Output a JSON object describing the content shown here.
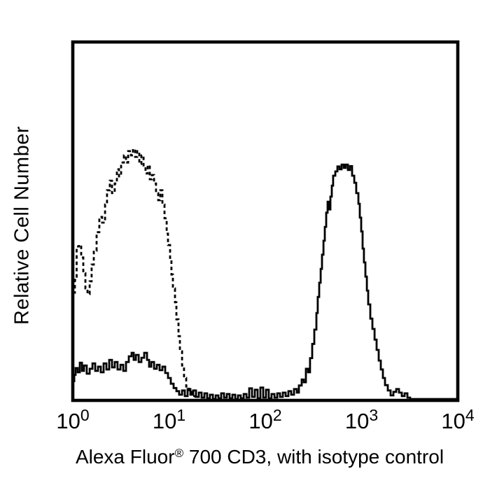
{
  "figure": {
    "background_color": "#ffffff",
    "line_color": "#000000",
    "y_axis": {
      "title": "Relative Cell Number"
    },
    "x_axis": {
      "title_prefix": "Alexa Fluor",
      "title_reg": "®",
      "title_suffix": " 700 CD3, with isotype control",
      "tick_base": "10",
      "tick_exponents": [
        "0",
        "1",
        "2",
        "3",
        "4"
      ]
    }
  },
  "chart_data": {
    "type": "line",
    "subtype": "flow-cytometry-histogram-overlay",
    "title": "",
    "xlabel": "Alexa Fluor® 700 CD3, with isotype control",
    "ylabel": "Relative Cell Number",
    "x_scale": "log10",
    "x_range_decades": [
      0,
      4
    ],
    "x_tick_labels": [
      "10^0",
      "10^1",
      "10^2",
      "10^3",
      "10^4"
    ],
    "y_range_relative": [
      0,
      1
    ],
    "grid": false,
    "legend_position": "none",
    "frame": "box",
    "series": [
      {
        "name": "isotype control",
        "style": "dashed",
        "color": "#000000",
        "peak_log_x": 0.63,
        "peak_height": 0.7,
        "points": [
          [
            0.0,
            0.299
          ],
          [
            0.022,
            0.335
          ],
          [
            0.04,
            0.429
          ],
          [
            0.065,
            0.433
          ],
          [
            0.087,
            0.398
          ],
          [
            0.109,
            0.354
          ],
          [
            0.131,
            0.311
          ],
          [
            0.153,
            0.295
          ],
          [
            0.175,
            0.331
          ],
          [
            0.196,
            0.378
          ],
          [
            0.218,
            0.417
          ],
          [
            0.247,
            0.469
          ],
          [
            0.276,
            0.512
          ],
          [
            0.305,
            0.496
          ],
          [
            0.335,
            0.547
          ],
          [
            0.356,
            0.587
          ],
          [
            0.385,
            0.614
          ],
          [
            0.407,
            0.579
          ],
          [
            0.436,
            0.606
          ],
          [
            0.458,
            0.646
          ],
          [
            0.48,
            0.626
          ],
          [
            0.502,
            0.665
          ],
          [
            0.531,
            0.685
          ],
          [
            0.553,
            0.665
          ],
          [
            0.575,
            0.697
          ],
          [
            0.604,
            0.685
          ],
          [
            0.625,
            0.703
          ],
          [
            0.647,
            0.681
          ],
          [
            0.669,
            0.697
          ],
          [
            0.691,
            0.661
          ],
          [
            0.713,
            0.685
          ],
          [
            0.735,
            0.654
          ],
          [
            0.756,
            0.634
          ],
          [
            0.778,
            0.657
          ],
          [
            0.8,
            0.618
          ],
          [
            0.822,
            0.63
          ],
          [
            0.844,
            0.606
          ],
          [
            0.865,
            0.579
          ],
          [
            0.887,
            0.559
          ],
          [
            0.909,
            0.587
          ],
          [
            0.931,
            0.547
          ],
          [
            0.953,
            0.508
          ],
          [
            0.975,
            0.465
          ],
          [
            0.989,
            0.433
          ],
          [
            1.011,
            0.39
          ],
          [
            1.025,
            0.35
          ],
          [
            1.04,
            0.311
          ],
          [
            1.062,
            0.272
          ],
          [
            1.076,
            0.224
          ],
          [
            1.098,
            0.177
          ],
          [
            1.113,
            0.134
          ],
          [
            1.135,
            0.094
          ],
          [
            1.156,
            0.059
          ],
          [
            1.178,
            0.035
          ],
          [
            1.207,
            0.02
          ],
          [
            1.236,
            0.008
          ],
          [
            1.273,
            0.0
          ]
        ]
      },
      {
        "name": "Alexa Fluor 700 CD3",
        "style": "solid",
        "color": "#000000",
        "peak_log_x": 2.86,
        "peak_height": 0.66,
        "points": [
          [
            0.0,
            0.05
          ],
          [
            0.015,
            0.068
          ],
          [
            0.029,
            0.087
          ],
          [
            0.051,
            0.075
          ],
          [
            0.073,
            0.102
          ],
          [
            0.095,
            0.079
          ],
          [
            0.116,
            0.094
          ],
          [
            0.145,
            0.071
          ],
          [
            0.175,
            0.085
          ],
          [
            0.204,
            0.1
          ],
          [
            0.233,
            0.079
          ],
          [
            0.262,
            0.091
          ],
          [
            0.291,
            0.075
          ],
          [
            0.32,
            0.1
          ],
          [
            0.349,
            0.083
          ],
          [
            0.378,
            0.11
          ],
          [
            0.407,
            0.089
          ],
          [
            0.436,
            0.104
          ],
          [
            0.465,
            0.083
          ],
          [
            0.495,
            0.096
          ],
          [
            0.524,
            0.079
          ],
          [
            0.553,
            0.104
          ],
          [
            0.582,
            0.12
          ],
          [
            0.611,
            0.13
          ],
          [
            0.633,
            0.11
          ],
          [
            0.655,
            0.124
          ],
          [
            0.684,
            0.104
          ],
          [
            0.713,
            0.116
          ],
          [
            0.742,
            0.13
          ],
          [
            0.771,
            0.11
          ],
          [
            0.793,
            0.091
          ],
          [
            0.815,
            0.104
          ],
          [
            0.844,
            0.085
          ],
          [
            0.873,
            0.096
          ],
          [
            0.902,
            0.081
          ],
          [
            0.931,
            0.091
          ],
          [
            0.96,
            0.073
          ],
          [
            0.989,
            0.059
          ],
          [
            1.018,
            0.043
          ],
          [
            1.047,
            0.031
          ],
          [
            1.076,
            0.022
          ],
          [
            1.105,
            0.012
          ],
          [
            1.135,
            0.024
          ],
          [
            1.164,
            0.008
          ],
          [
            1.193,
            0.028
          ],
          [
            1.222,
            0.012
          ],
          [
            1.251,
            0.024
          ],
          [
            1.28,
            0.006
          ],
          [
            1.309,
            0.018
          ],
          [
            1.338,
            0.004
          ],
          [
            1.367,
            0.016
          ],
          [
            1.396,
            0.002
          ],
          [
            1.425,
            0.012
          ],
          [
            1.455,
            0.0
          ],
          [
            1.484,
            0.01
          ],
          [
            1.513,
            0.002
          ],
          [
            1.542,
            0.016
          ],
          [
            1.571,
            0.004
          ],
          [
            1.6,
            0.014
          ],
          [
            1.629,
            0.002
          ],
          [
            1.658,
            0.012
          ],
          [
            1.687,
            0.0
          ],
          [
            1.716,
            0.01
          ],
          [
            1.745,
            0.002
          ],
          [
            1.775,
            0.014
          ],
          [
            1.804,
            0.004
          ],
          [
            1.833,
            0.03
          ],
          [
            1.862,
            0.006
          ],
          [
            1.891,
            0.026
          ],
          [
            1.92,
            0.002
          ],
          [
            1.949,
            0.032
          ],
          [
            1.978,
            0.004
          ],
          [
            2.007,
            0.026
          ],
          [
            2.036,
            0.002
          ],
          [
            2.065,
            0.014
          ],
          [
            2.095,
            0.004
          ],
          [
            2.124,
            0.016
          ],
          [
            2.153,
            0.006
          ],
          [
            2.182,
            0.018
          ],
          [
            2.211,
            0.008
          ],
          [
            2.24,
            0.022
          ],
          [
            2.269,
            0.012
          ],
          [
            2.298,
            0.028
          ],
          [
            2.327,
            0.018
          ],
          [
            2.349,
            0.038
          ],
          [
            2.378,
            0.055
          ],
          [
            2.4,
            0.047
          ],
          [
            2.422,
            0.085
          ],
          [
            2.444,
            0.075
          ],
          [
            2.465,
            0.115
          ],
          [
            2.487,
            0.155
          ],
          [
            2.509,
            0.195
          ],
          [
            2.531,
            0.242
          ],
          [
            2.545,
            0.287
          ],
          [
            2.56,
            0.327
          ],
          [
            2.575,
            0.366
          ],
          [
            2.589,
            0.406
          ],
          [
            2.604,
            0.445
          ],
          [
            2.618,
            0.484
          ],
          [
            2.633,
            0.524
          ],
          [
            2.647,
            0.555
          ],
          [
            2.662,
            0.533
          ],
          [
            2.676,
            0.569
          ],
          [
            2.691,
            0.6
          ],
          [
            2.705,
            0.628
          ],
          [
            2.727,
            0.64
          ],
          [
            2.749,
            0.654
          ],
          [
            2.771,
            0.646
          ],
          [
            2.793,
            0.659
          ],
          [
            2.815,
            0.65
          ],
          [
            2.836,
            0.659
          ],
          [
            2.858,
            0.644
          ],
          [
            2.88,
            0.655
          ],
          [
            2.902,
            0.628
          ],
          [
            2.924,
            0.608
          ],
          [
            2.945,
            0.579
          ],
          [
            2.967,
            0.549
          ],
          [
            2.982,
            0.51
          ],
          [
            2.996,
            0.471
          ],
          [
            3.011,
            0.423
          ],
          [
            3.025,
            0.384
          ],
          [
            3.04,
            0.344
          ],
          [
            3.055,
            0.305
          ],
          [
            3.069,
            0.266
          ],
          [
            3.091,
            0.226
          ],
          [
            3.113,
            0.197
          ],
          [
            3.135,
            0.167
          ],
          [
            3.156,
            0.138
          ],
          [
            3.178,
            0.108
          ],
          [
            3.2,
            0.083
          ],
          [
            3.222,
            0.059
          ],
          [
            3.244,
            0.039
          ],
          [
            3.273,
            0.024
          ],
          [
            3.302,
            0.01
          ],
          [
            3.331,
            0.02
          ],
          [
            3.36,
            0.028
          ],
          [
            3.389,
            0.018
          ],
          [
            3.418,
            0.008
          ],
          [
            3.447,
            0.016
          ],
          [
            3.476,
            0.004
          ],
          [
            3.505,
            0.0
          ],
          [
            3.6,
            0.0
          ],
          [
            4.0,
            0.0
          ]
        ]
      }
    ]
  }
}
